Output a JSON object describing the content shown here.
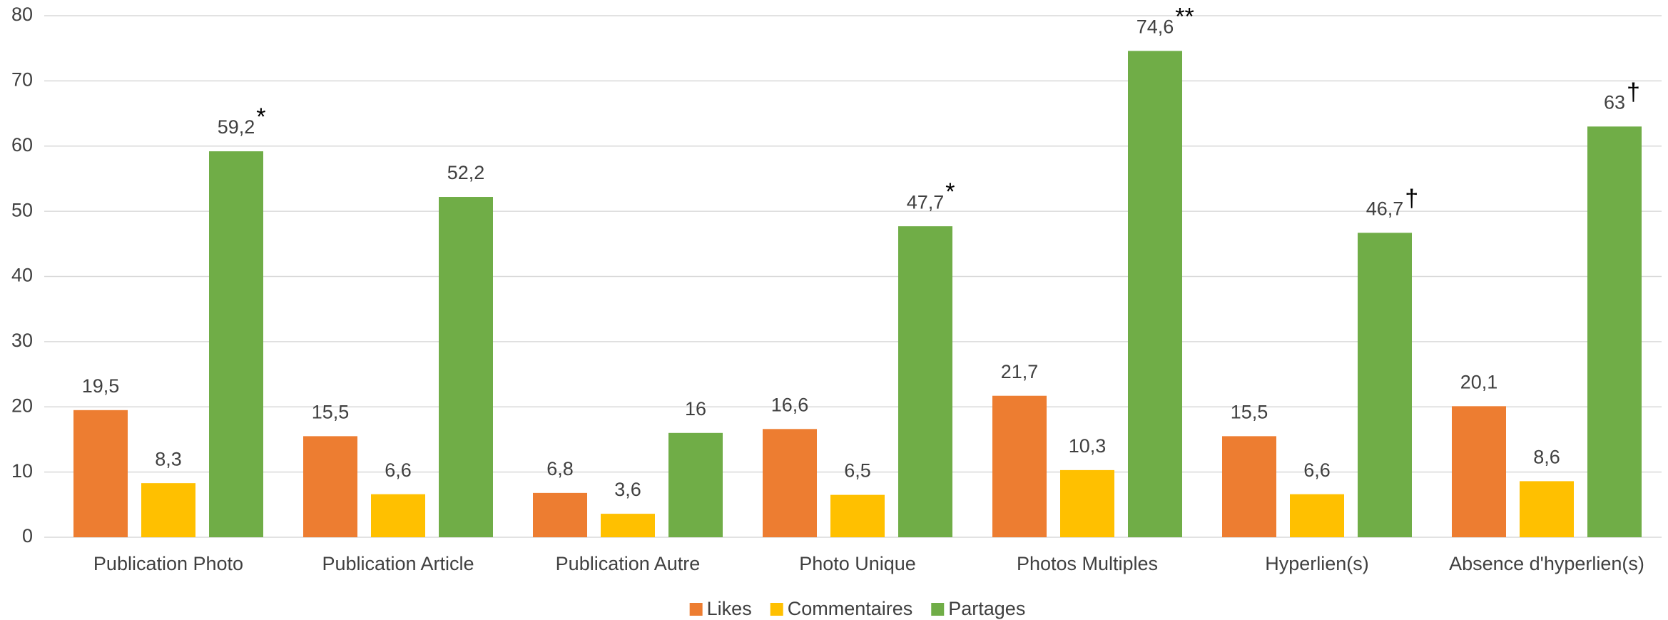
{
  "chart_data": {
    "type": "bar",
    "categories": [
      "Publication Photo",
      "Publication Article",
      "Publication Autre",
      "Photo Unique",
      "Photos Multiples",
      "Hyperlien(s)",
      "Absence d'hyperlien(s)"
    ],
    "series": [
      {
        "name": "Likes",
        "color": "#ed7d31",
        "values": [
          19.5,
          15.5,
          6.8,
          16.6,
          21.7,
          15.5,
          20.1
        ],
        "value_labels": [
          "19,5",
          "15,5",
          "6,8",
          "16,6",
          "21,7",
          "15,5",
          "20,1"
        ]
      },
      {
        "name": "Commentaires",
        "color": "#ffc000",
        "values": [
          8.3,
          6.6,
          3.6,
          6.5,
          10.3,
          6.6,
          8.6
        ],
        "value_labels": [
          "8,3",
          "6,6",
          "3,6",
          "6,5",
          "10,3",
          "6,6",
          "8,6"
        ]
      },
      {
        "name": "Partages",
        "color": "#70ad47",
        "values": [
          59.2,
          52.2,
          16,
          47.7,
          74.6,
          46.7,
          63
        ],
        "value_labels": [
          "59,2",
          "52,2",
          "16",
          "47,7",
          "74,6",
          "46,7",
          "63"
        ],
        "value_notes": [
          "*",
          null,
          null,
          "*",
          "**",
          "†",
          "†"
        ]
      }
    ],
    "ylim": [
      0,
      80
    ],
    "yticks": [
      0,
      10,
      20,
      30,
      40,
      50,
      60,
      70,
      80
    ],
    "grid": true,
    "legend": "bottom"
  }
}
